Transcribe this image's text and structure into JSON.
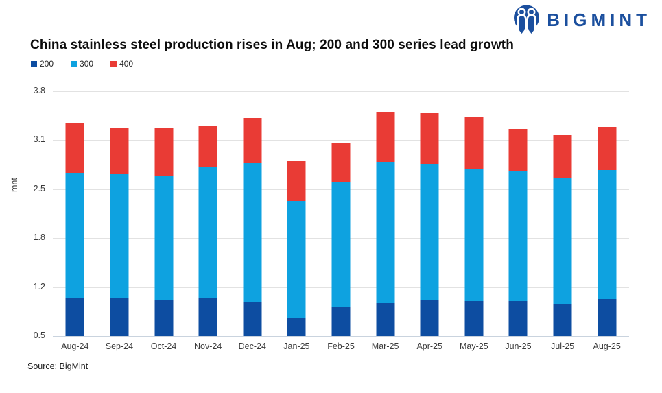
{
  "logo": {
    "text": "BIGMINT",
    "icon": "bigmint-people-icon",
    "color": "#1b4f9e"
  },
  "title": "China stainless steel production rises in Aug; 200 and 300 series lead growth",
  "source": "Source: BigMint",
  "chart_data": {
    "type": "bar",
    "stacked": true,
    "title": "China stainless steel production rises in Aug; 200 and 300 series lead growth",
    "xlabel": "",
    "ylabel": "mnt",
    "ylim": [
      0.5,
      3.8
    ],
    "ytick_labels_top_down": [
      "3.8",
      "3.1",
      "2.5",
      "1.8",
      "1.2",
      "0.5"
    ],
    "grid": true,
    "legend_position": "top-left",
    "categories": [
      "Aug-24",
      "Sep-24",
      "Oct-24",
      "Nov-24",
      "Dec-24",
      "Jan-25",
      "Feb-25",
      "Mar-25",
      "Apr-25",
      "May-25",
      "Jun-25",
      "Jul-25",
      "Aug-25"
    ],
    "series": [
      {
        "name": "200",
        "color": "#0d4da1",
        "values": [
          1.02,
          1.01,
          0.98,
          1.01,
          0.96,
          0.75,
          0.89,
          0.94,
          0.99,
          0.97,
          0.97,
          0.93,
          1.0
        ]
      },
      {
        "name": "300",
        "color": "#0ea2e0",
        "values": [
          1.68,
          1.67,
          1.68,
          1.77,
          1.87,
          1.57,
          1.68,
          1.91,
          1.83,
          1.78,
          1.75,
          1.7,
          1.74
        ]
      },
      {
        "name": "400",
        "color": "#e93b35",
        "values": [
          0.67,
          0.62,
          0.64,
          0.55,
          0.61,
          0.54,
          0.54,
          0.66,
          0.68,
          0.71,
          0.57,
          0.58,
          0.58
        ]
      }
    ],
    "totals": [
      3.37,
      3.3,
      3.3,
      3.33,
      3.44,
      2.86,
      3.11,
      3.51,
      3.5,
      3.46,
      3.29,
      3.21,
      3.32
    ]
  }
}
